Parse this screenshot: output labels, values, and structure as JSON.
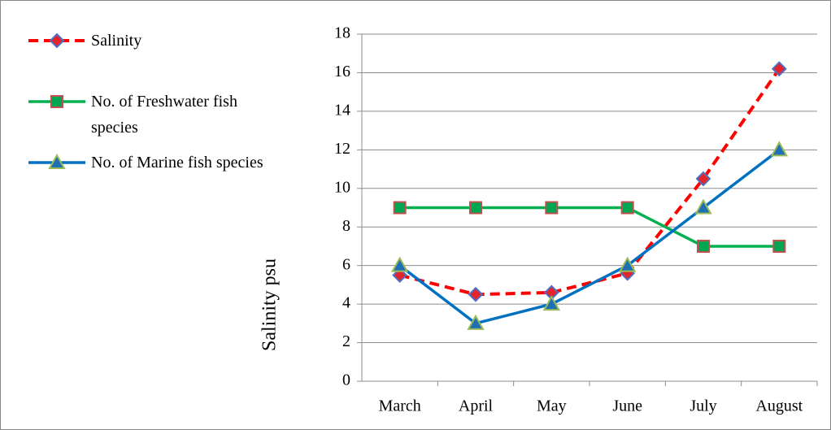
{
  "chart_data": {
    "type": "line",
    "y_label": "Salinity psu",
    "categories": [
      "March",
      "April",
      "May",
      "June",
      "July",
      "August"
    ],
    "series": [
      {
        "name": "Salinity",
        "color": "#ff0000",
        "dashed": true,
        "marker": "diamond",
        "marker_fill": "#e3242b",
        "marker_stroke": "#4f6fc4",
        "values": [
          5.5,
          4.5,
          4.6,
          5.6,
          10.5,
          16.2
        ]
      },
      {
        "name": "No. of Freshwater fish species",
        "color": "#00b050",
        "dashed": false,
        "marker": "square",
        "marker_fill": "#00a651",
        "marker_stroke": "#c0504d",
        "values": [
          9,
          9,
          9,
          9,
          7,
          7
        ]
      },
      {
        "name": "No. of Marine fish species",
        "color": "#0070c0",
        "dashed": false,
        "marker": "triangle",
        "marker_fill": "#1f6fb5",
        "marker_stroke": "#9bbb59",
        "values": [
          6,
          3,
          4,
          6,
          9,
          12
        ]
      }
    ],
    "ylim": [
      0,
      18
    ],
    "yticks": [
      0,
      2,
      4,
      6,
      8,
      10,
      12,
      14,
      16,
      18
    ],
    "grid": true,
    "legend": "left"
  }
}
